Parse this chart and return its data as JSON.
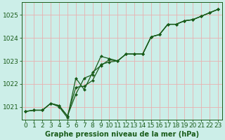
{
  "title": "Graphe pression niveau de la mer (hPa)",
  "bg_color": "#cceee8",
  "grid_color": "#e8b0b0",
  "line_color": "#1a5c1a",
  "marker_color": "#1a5c1a",
  "xlim": [
    -0.5,
    23.5
  ],
  "ylim": [
    1020.45,
    1025.55
  ],
  "yticks": [
    1021,
    1022,
    1023,
    1024,
    1025
  ],
  "xticks": [
    0,
    1,
    2,
    3,
    4,
    5,
    6,
    7,
    8,
    9,
    10,
    11,
    12,
    13,
    14,
    15,
    16,
    17,
    18,
    19,
    20,
    21,
    22,
    23
  ],
  "series": [
    [
      1020.8,
      1020.85,
      1020.85,
      1021.15,
      1021.05,
      1020.6,
      1021.85,
      1021.9,
      1022.15,
      1022.85,
      1022.95,
      1023.0,
      1023.3,
      1023.3,
      1023.3,
      1024.05,
      1024.15,
      1024.6,
      1024.6,
      1024.75,
      1024.8,
      1024.95,
      1025.1,
      1025.25
    ],
    [
      1020.8,
      1020.85,
      1020.85,
      1021.15,
      1021.05,
      1020.6,
      1021.55,
      1022.25,
      1022.4,
      1023.2,
      1023.1,
      1023.0,
      1023.3,
      1023.3,
      1023.3,
      1024.05,
      1024.15,
      1024.6,
      1024.6,
      1024.75,
      1024.8,
      1024.95,
      1025.1,
      1025.25
    ],
    [
      1020.8,
      1020.85,
      1020.85,
      1021.15,
      1021.0,
      1020.52,
      1022.25,
      1021.75,
      1022.5,
      1022.8,
      1023.05,
      1023.0,
      1023.3,
      1023.3,
      1023.3,
      1024.05,
      1024.15,
      1024.6,
      1024.6,
      1024.75,
      1024.8,
      1024.95,
      1025.1,
      1025.25
    ]
  ],
  "label_fontsize": 6.5,
  "title_fontsize": 7.0,
  "linewidth": 0.9,
  "markersize": 2.0
}
